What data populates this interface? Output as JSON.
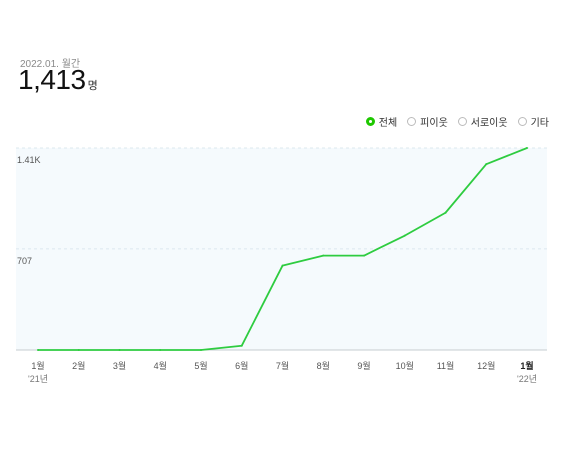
{
  "summary": {
    "period": "2022.01. 월간",
    "total": "1,413",
    "unit": "명"
  },
  "legend": {
    "selected": 0,
    "items": [
      "전체",
      "피이웃",
      "서로이웃",
      "기타"
    ]
  },
  "colors": {
    "line": "#2ecc40",
    "plot_bg": "#f5fafd",
    "grid": "#dce8ee",
    "accent": "#1ec800"
  },
  "chart_data": {
    "type": "line",
    "categories": [
      "1월",
      "2월",
      "3월",
      "4월",
      "5월",
      "6월",
      "7월",
      "8월",
      "9월",
      "10월",
      "11월",
      "12월",
      "1월"
    ],
    "year_labels": [
      {
        "index": 0,
        "label": "'21년"
      },
      {
        "index": 12,
        "label": "'22년"
      }
    ],
    "y_ticks": [
      {
        "value": 1413,
        "label": "1.41K"
      },
      {
        "value": 707,
        "label": "707"
      }
    ],
    "ylim": [
      0,
      1413
    ],
    "series": [
      {
        "values": [
          0,
          0,
          0,
          0,
          0,
          30,
          590,
          660,
          660,
          800,
          960,
          1300,
          1413
        ]
      }
    ],
    "grid": true,
    "legend_position": "top-right"
  }
}
